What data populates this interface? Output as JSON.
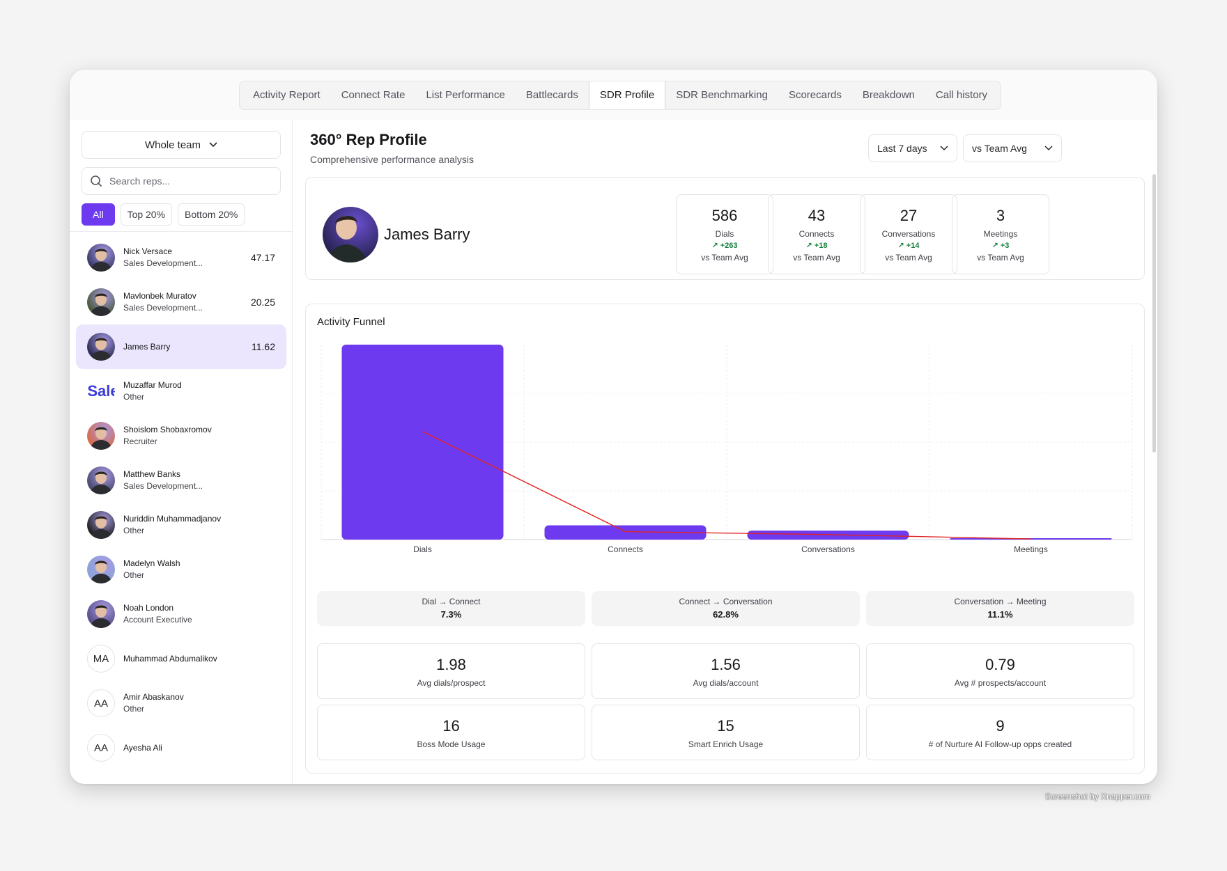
{
  "tabs": [
    "Activity Report",
    "Connect Rate",
    "List Performance",
    "Battlecards",
    "SDR Profile",
    "SDR Benchmarking",
    "Scorecards",
    "Breakdown",
    "Call history"
  ],
  "active_tab": 4,
  "sidebar": {
    "team_select": "Whole team",
    "search_placeholder": "Search reps...",
    "filters": [
      "All",
      "Top 20%",
      "Bottom 20%"
    ],
    "reps": [
      {
        "name": "Nick Versace",
        "role": "Sales Development...",
        "score": "47.17",
        "avatar": "photo",
        "color": "#3b3b6b"
      },
      {
        "name": "Mavlonbek Muratov",
        "role": "Sales Development...",
        "score": "20.25",
        "avatar": "photo",
        "color": "#4a5a3c"
      },
      {
        "name": "James Barry",
        "role": "",
        "score": "11.62",
        "avatar": "photo",
        "color": "#2d2d55",
        "selected": true
      },
      {
        "name": "Muzaffar Murod",
        "role": "Other",
        "score": "",
        "avatar": "logo",
        "logo_text": "Sale",
        "color": "#3b3bd9"
      },
      {
        "name": "Shoislom Shobaxromov",
        "role": "Recruiter",
        "score": "",
        "avatar": "photo",
        "color": "#d96a4a"
      },
      {
        "name": "Matthew Banks",
        "role": "Sales Development...",
        "score": "",
        "avatar": "photo",
        "color": "#4b4a70"
      },
      {
        "name": "Nuriddin Muhammadjanov",
        "role": "Other",
        "score": "",
        "avatar": "photo",
        "color": "#222222"
      },
      {
        "name": "Madelyn Walsh",
        "role": "Other",
        "score": "",
        "avatar": "photo",
        "color": "#8aa3d8"
      },
      {
        "name": "Noah London",
        "role": "Account Executive",
        "score": "",
        "avatar": "photo",
        "color": "#5a4f8a"
      },
      {
        "name": "Muhammad Abdumalikov",
        "role": "",
        "score": "",
        "avatar": "initials",
        "initials": "MA"
      },
      {
        "name": "Amir Abaskanov",
        "role": "Other",
        "score": "",
        "avatar": "initials",
        "initials": "AA"
      },
      {
        "name": "Ayesha Ali",
        "role": "",
        "score": "",
        "avatar": "initials",
        "initials": "AA"
      }
    ]
  },
  "header": {
    "title": "360° Rep Profile",
    "subtitle": "Comprehensive performance analysis",
    "period": "Last 7 days",
    "compare": "vs Team Avg"
  },
  "profile": {
    "name": "James Barry",
    "stats": [
      {
        "value": "586",
        "label": "Dials",
        "delta": "+263",
        "cmp": "vs Team Avg"
      },
      {
        "value": "43",
        "label": "Connects",
        "delta": "+18",
        "cmp": "vs Team Avg"
      },
      {
        "value": "27",
        "label": "Conversations",
        "delta": "+14",
        "cmp": "vs Team Avg"
      },
      {
        "value": "3",
        "label": "Meetings",
        "delta": "+3",
        "cmp": "vs Team Avg"
      }
    ]
  },
  "funnel": {
    "title": "Activity Funnel",
    "rates": [
      {
        "label": "Dial → Connect",
        "value": "7.3%"
      },
      {
        "label": "Connect → Conversation",
        "value": "62.8%"
      },
      {
        "label": "Conversation → Meeting",
        "value": "11.1%"
      }
    ],
    "metrics": [
      {
        "value": "1.98",
        "label": "Avg dials/prospect"
      },
      {
        "value": "1.56",
        "label": "Avg dials/account"
      },
      {
        "value": "0.79",
        "label": "Avg # prospects/account"
      },
      {
        "value": "16",
        "label": "Boss Mode Usage"
      },
      {
        "value": "15",
        "label": "Smart Enrich Usage"
      },
      {
        "value": "9",
        "label": "# of Nurture AI Follow-up opps created"
      }
    ]
  },
  "chart_data": {
    "type": "bar",
    "categories": [
      "Dials",
      "Connects",
      "Conversations",
      "Meetings"
    ],
    "values": [
      586,
      43,
      27,
      3
    ],
    "line_values": [
      325,
      24,
      15,
      2
    ],
    "ylim": [
      0,
      586
    ],
    "bar_color": "#6d3aef",
    "line_color": "#e02424",
    "grid": true
  },
  "credit": "Screenshot by Xnapper.com",
  "colors": {
    "accent": "#6d3aef",
    "positive": "#15803d"
  }
}
